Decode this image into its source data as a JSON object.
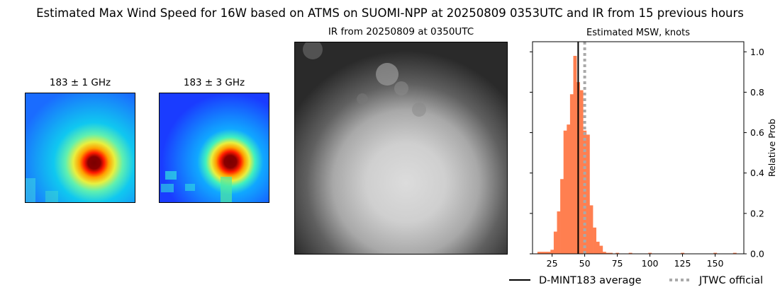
{
  "figure_title": "Estimated Max Wind Speed for 16W based on ATMS on SUOMI-NPP at 20250809 0353UTC and IR from 15 previous hours",
  "panels": {
    "mw1_title": "183 ± 1 GHz",
    "mw2_title": "183 ± 3 GHz",
    "ir_title": "IR from 20250809 at 0350UTC"
  },
  "legend": {
    "average_label": "D-MINT183 average",
    "official_label": "JTWC official"
  },
  "colors": {
    "bars": "#ff7f50",
    "average_line": "#000000",
    "official_line": "#a9a9a9"
  },
  "chart_data": {
    "type": "bar",
    "title": "Estimated MSW, knots",
    "xlabel": "",
    "ylabel": "Relative Prob",
    "xlim": [
      10,
      172
    ],
    "ylim": [
      0,
      1.05
    ],
    "xticks": [
      "25",
      "50",
      "75",
      "100",
      "125",
      "150"
    ],
    "yticks": [
      "0.0",
      "0.2",
      "0.4",
      "0.6",
      "0.8",
      "1.0"
    ],
    "bin_width": 2.5,
    "bins": [
      {
        "x": 15,
        "value": 0.01
      },
      {
        "x": 17.5,
        "value": 0.01
      },
      {
        "x": 20,
        "value": 0.01
      },
      {
        "x": 22.5,
        "value": 0.01
      },
      {
        "x": 25,
        "value": 0.02
      },
      {
        "x": 27.5,
        "value": 0.11
      },
      {
        "x": 30,
        "value": 0.21
      },
      {
        "x": 32.5,
        "value": 0.37
      },
      {
        "x": 35,
        "value": 0.61
      },
      {
        "x": 37.5,
        "value": 0.64
      },
      {
        "x": 40,
        "value": 0.79
      },
      {
        "x": 42.5,
        "value": 0.98
      },
      {
        "x": 45,
        "value": 0.85
      },
      {
        "x": 47.5,
        "value": 0.81
      },
      {
        "x": 50,
        "value": 0.61
      },
      {
        "x": 52.5,
        "value": 0.59
      },
      {
        "x": 55,
        "value": 0.24
      },
      {
        "x": 57.5,
        "value": 0.13
      },
      {
        "x": 60,
        "value": 0.06
      },
      {
        "x": 62.5,
        "value": 0.04
      },
      {
        "x": 65,
        "value": 0.01
      },
      {
        "x": 67.5,
        "value": 0.005
      },
      {
        "x": 70,
        "value": 0.005
      },
      {
        "x": 75,
        "value": 0.005
      },
      {
        "x": 85,
        "value": 0.005
      },
      {
        "x": 100,
        "value": 0.005
      },
      {
        "x": 125,
        "value": 0.005
      },
      {
        "x": 150,
        "value": 0.005
      },
      {
        "x": 165,
        "value": 0.005
      }
    ],
    "average": 45,
    "official": 50,
    "legend_position": "below"
  }
}
